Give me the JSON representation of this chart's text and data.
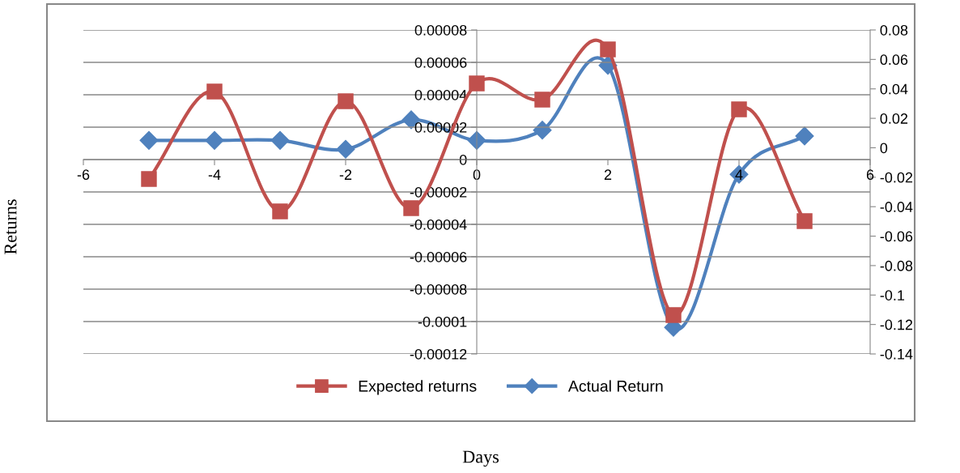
{
  "chart_data": {
    "type": "line",
    "annotations": [
      "Days"
    ],
    "ylabel": "Returns",
    "x": [
      -5,
      -4,
      -3,
      -2,
      -1,
      0,
      1,
      2,
      3,
      4,
      5
    ],
    "series": [
      {
        "name": "Expected returns",
        "color": "#c0504d",
        "marker": "square",
        "values": [
          -1.2e-05,
          4.2e-05,
          -3.2e-05,
          3.6e-05,
          -3e-05,
          4.7e-05,
          3.7e-05,
          6.8e-05,
          -9.6e-05,
          3.1e-05,
          -3.8e-05
        ]
      },
      {
        "name": "Actual Return",
        "color": "#4f81bd",
        "marker": "diamond",
        "axis": "y2",
        "values": [
          0.005,
          0.005,
          0.005,
          -0.001,
          0.019,
          0.005,
          0.012,
          0.056,
          -0.122,
          -0.018,
          0.008
        ]
      }
    ],
    "xlim": [
      -6,
      6
    ],
    "xticks": [
      -6,
      -4,
      -2,
      0,
      2,
      4,
      6
    ],
    "ylim": [
      -0.00012,
      8e-05
    ],
    "yticks": [
      {
        "value": -0.00012,
        "label": "-0.00012"
      },
      {
        "value": -0.0001,
        "label": "-0.0001"
      },
      {
        "value": -8e-05,
        "label": "-0.00008"
      },
      {
        "value": -6e-05,
        "label": "-0.00006"
      },
      {
        "value": -4e-05,
        "label": "-0.00004"
      },
      {
        "value": -2e-05,
        "label": "-0.00002"
      },
      0,
      {
        "value": 2e-05,
        "label": "0.00002"
      },
      {
        "value": 4e-05,
        "label": "0.00004"
      },
      {
        "value": 6e-05,
        "label": "0.00006"
      },
      {
        "value": 8e-05,
        "label": "0.00008"
      }
    ],
    "y2lim": [
      -0.14,
      0.08
    ],
    "y2ticks": [
      -0.14,
      -0.12,
      -0.1,
      -0.08,
      -0.06,
      -0.04,
      -0.02,
      0,
      0.02,
      0.04,
      0.06,
      0.08
    ],
    "grid": "y",
    "legend": "bottom",
    "line_style": "solid"
  }
}
